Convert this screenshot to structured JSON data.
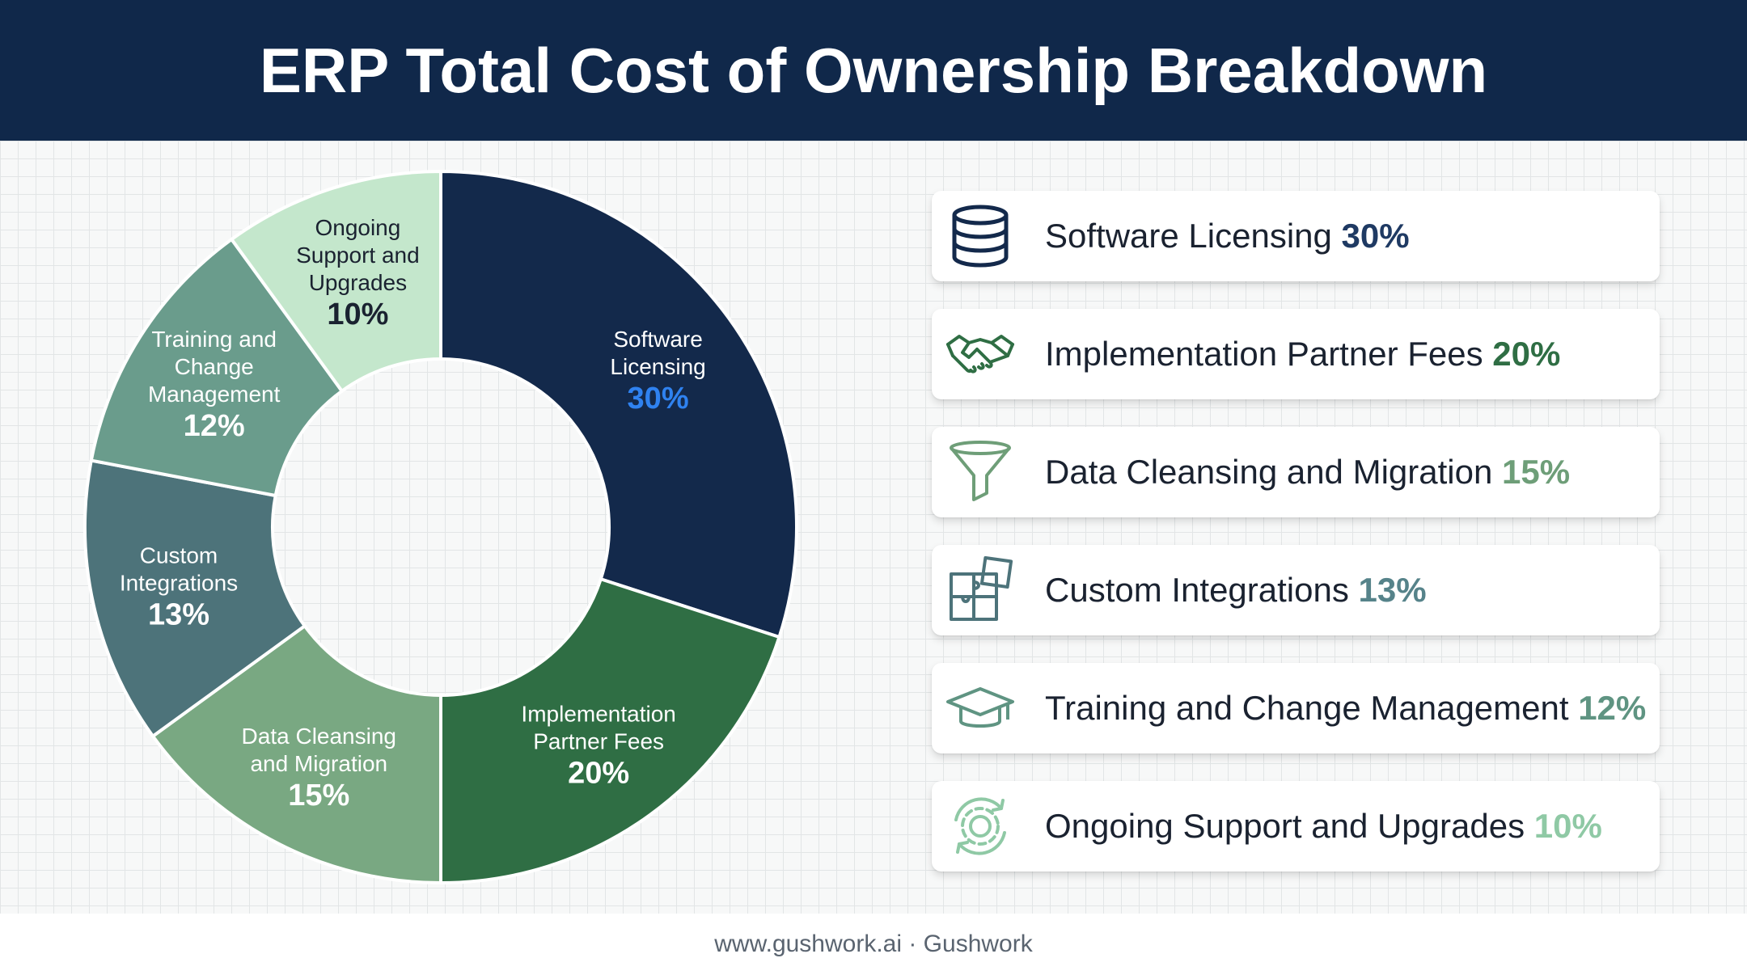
{
  "title": "ERP Total Cost of Ownership Breakdown",
  "footer": "www.gushwork.ai · Gushwork",
  "chart_data": {
    "type": "pie",
    "title": "ERP Total Cost of Ownership Breakdown",
    "legend_placement": "right",
    "series": [
      {
        "label": [
          "Software",
          "Licensing"
        ],
        "name": "Software Licensing",
        "percent_label": "30%",
        "value": 30,
        "color": "#13294b",
        "text_color": "#ffffff",
        "pct_color": "#2f82f0",
        "legend_pct_color": "#1f3a63",
        "icon": "database-icon"
      },
      {
        "label": [
          "Implementation",
          "Partner Fees"
        ],
        "name": "Implementation Partner Fees",
        "percent_label": "20%",
        "value": 20,
        "color": "#2f6e44",
        "text_color": "#ffffff",
        "pct_color": "#ffffff",
        "legend_pct_color": "#2f6e44",
        "icon": "handshake-icon"
      },
      {
        "label": [
          "Data Cleansing",
          "and Migration"
        ],
        "name": "Data Cleansing and Migration",
        "percent_label": "15%",
        "value": 15,
        "color": "#79a882",
        "text_color": "#ffffff",
        "pct_color": "#ffffff",
        "legend_pct_color": "#6e9e78",
        "icon": "funnel-icon"
      },
      {
        "label": [
          "Custom",
          "Integrations"
        ],
        "name": "Custom Integrations",
        "percent_label": "13%",
        "value": 13,
        "color": "#4d737a",
        "text_color": "#ffffff",
        "pct_color": "#ffffff",
        "legend_pct_color": "#56838a",
        "icon": "puzzle-icon"
      },
      {
        "label": [
          "Training and",
          "Change",
          "Management"
        ],
        "name": "Training and Change Management",
        "percent_label": "12%",
        "value": 12,
        "color": "#6a9c8c",
        "text_color": "#ffffff",
        "pct_color": "#ffffff",
        "legend_pct_color": "#5f9482",
        "icon": "graduation-cap-icon"
      },
      {
        "label": [
          "Ongoing",
          "Support and",
          "Upgrades"
        ],
        "name": "Ongoing Support and Upgrades",
        "percent_label": "10%",
        "value": 10,
        "color": "#c4e7cc",
        "text_color": "#1a2230",
        "pct_color": "#1a2230",
        "legend_pct_color": "#8fc9a5",
        "icon": "gear-refresh-icon"
      }
    ]
  }
}
